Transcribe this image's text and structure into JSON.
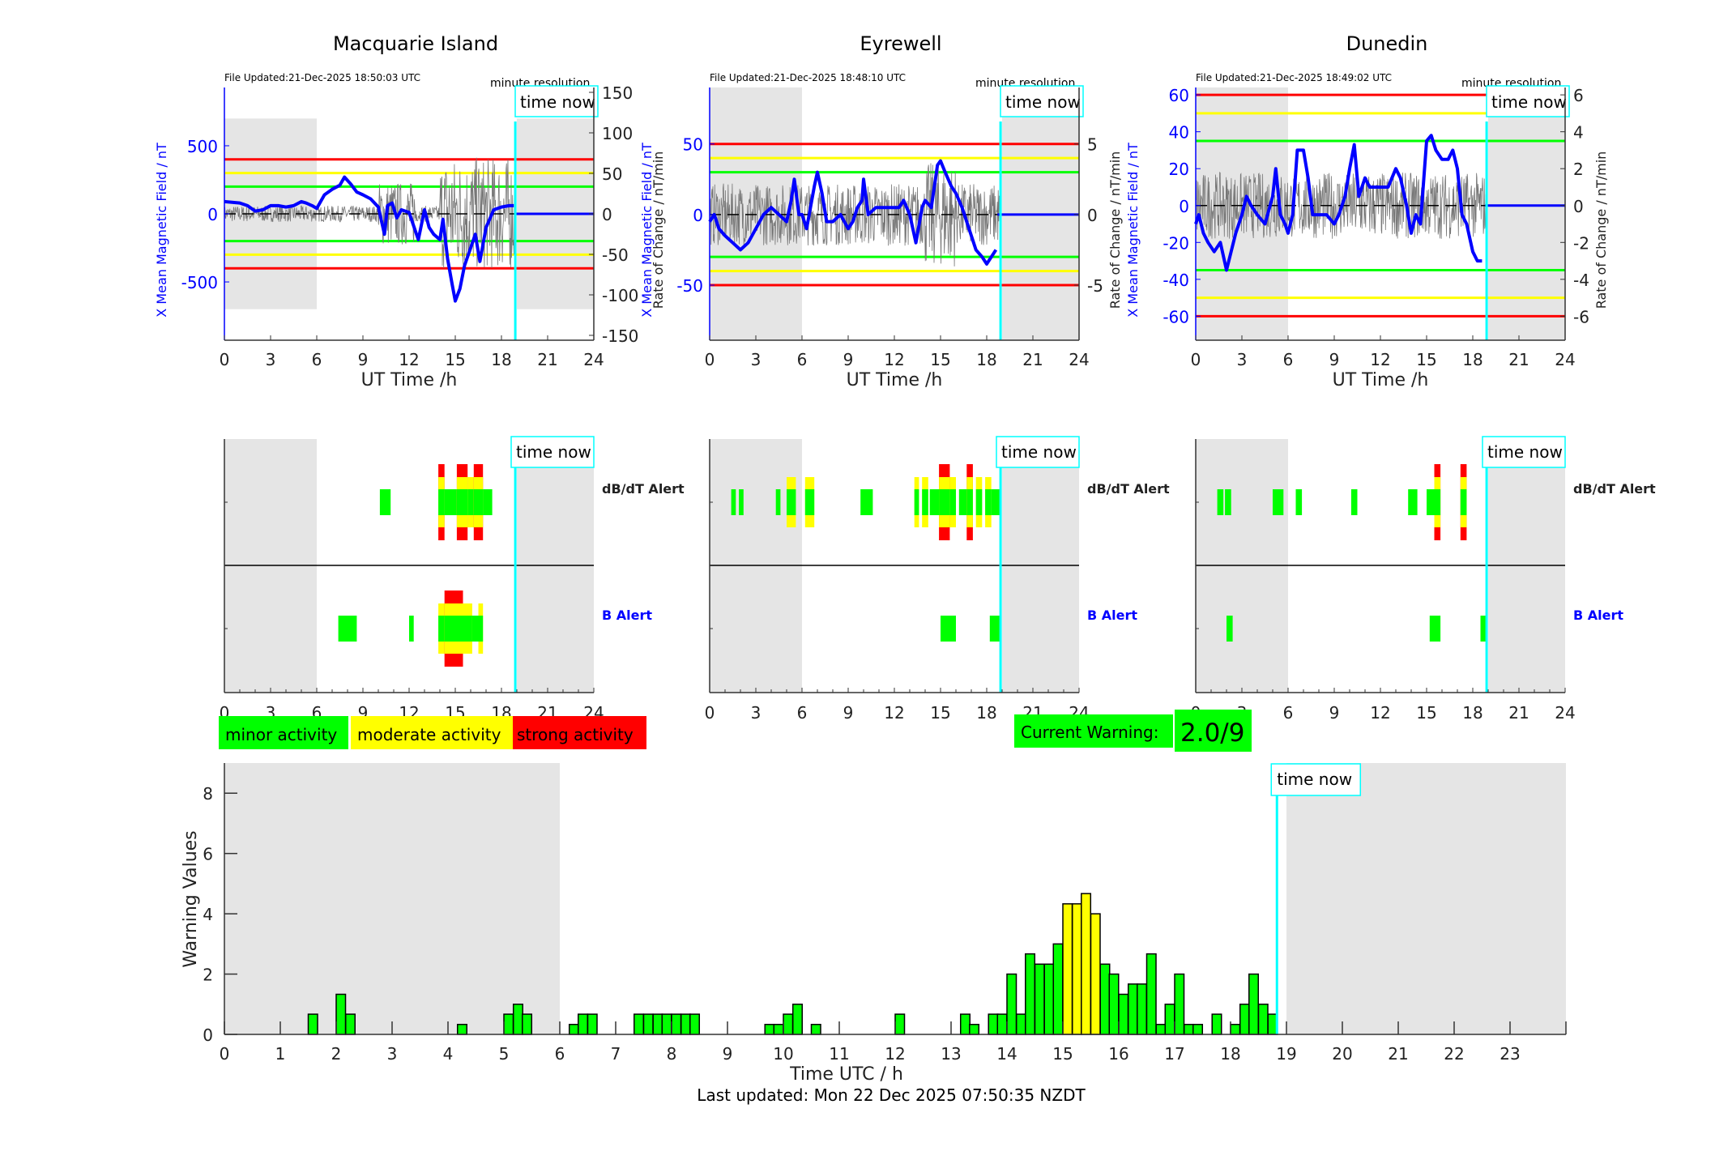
{
  "stations": [
    {
      "name": "Macquarie Island",
      "file_updated": "File Updated:21-Dec-2025 18:50:03 UTC",
      "resolution_label": "minute resolution",
      "left_ylabel": "X Mean Magnetic Field / nT",
      "right_ylabel": "Rate of Change / nT/min",
      "xlabel": "UT Time /h",
      "left_ylim": [
        -928,
        928
      ],
      "left_ticks": [
        500,
        0,
        -500
      ],
      "right_ylim": [
        -156,
        156
      ],
      "right_ticks": [
        150,
        100,
        50,
        0,
        -50,
        -100,
        -150
      ],
      "threshold_lines": [
        {
          "value": 400,
          "color": "#ff0000"
        },
        {
          "value": 300,
          "color": "#ffff00"
        },
        {
          "value": 200,
          "color": "#00ff00"
        },
        {
          "value": -200,
          "color": "#00ff00"
        },
        {
          "value": -300,
          "color": "#ffff00"
        },
        {
          "value": -400,
          "color": "#ff0000"
        }
      ],
      "field_series": [
        [
          0,
          90
        ],
        [
          0.5,
          85
        ],
        [
          1,
          80
        ],
        [
          1.5,
          60
        ],
        [
          2,
          20
        ],
        [
          2.5,
          30
        ],
        [
          3,
          60
        ],
        [
          3.5,
          60
        ],
        [
          4,
          50
        ],
        [
          4.5,
          60
        ],
        [
          5,
          90
        ],
        [
          5.3,
          80
        ],
        [
          5.7,
          60
        ],
        [
          6,
          40
        ],
        [
          6.5,
          140
        ],
        [
          7,
          180
        ],
        [
          7.5,
          210
        ],
        [
          7.8,
          270
        ],
        [
          8.2,
          220
        ],
        [
          8.6,
          160
        ],
        [
          9,
          140
        ],
        [
          9.5,
          110
        ],
        [
          10,
          50
        ],
        [
          10.4,
          -150
        ],
        [
          10.6,
          60
        ],
        [
          10.9,
          80
        ],
        [
          11.2,
          -30
        ],
        [
          11.5,
          30
        ],
        [
          12,
          10
        ],
        [
          12.3,
          -90
        ],
        [
          12.6,
          -190
        ],
        [
          13,
          30
        ],
        [
          13.3,
          -100
        ],
        [
          13.6,
          -150
        ],
        [
          14,
          -190
        ],
        [
          14.2,
          -40
        ],
        [
          14.5,
          -330
        ],
        [
          14.8,
          -520
        ],
        [
          15,
          -640
        ],
        [
          15.3,
          -550
        ],
        [
          15.6,
          -380
        ],
        [
          16,
          -250
        ],
        [
          16.3,
          -150
        ],
        [
          16.6,
          -350
        ],
        [
          17,
          -100
        ],
        [
          17.5,
          30
        ],
        [
          18,
          50
        ],
        [
          18.5,
          60
        ],
        [
          18.8,
          60
        ]
      ],
      "field_future": [
        [
          18.9,
          0
        ],
        [
          24,
          0
        ]
      ]
    },
    {
      "name": "Eyrewell",
      "file_updated": "File Updated:21-Dec-2025 18:48:10 UTC",
      "resolution_label": "minute resolution",
      "left_ylabel": "X Mean Magnetic Field / nT",
      "right_ylabel": "Rate of Change / nT/min",
      "xlabel": "UT Time /h",
      "left_ylim": [
        -89,
        90
      ],
      "left_ticks": [
        50,
        0,
        -50
      ],
      "right_ylim": [
        -8.9,
        9.0
      ],
      "right_ticks": [
        5,
        0,
        -5
      ],
      "threshold_lines": [
        {
          "value": 50,
          "color": "#ff0000"
        },
        {
          "value": 40,
          "color": "#ffff00"
        },
        {
          "value": 30,
          "color": "#00ff00"
        },
        {
          "value": -30,
          "color": "#00ff00"
        },
        {
          "value": -40,
          "color": "#ffff00"
        },
        {
          "value": -50,
          "color": "#ff0000"
        }
      ],
      "field_series": [
        [
          0,
          -5
        ],
        [
          0.3,
          0
        ],
        [
          0.6,
          -10
        ],
        [
          1,
          -15
        ],
        [
          1.5,
          -20
        ],
        [
          2,
          -25
        ],
        [
          2.5,
          -20
        ],
        [
          3,
          -10
        ],
        [
          3.5,
          0
        ],
        [
          4,
          5
        ],
        [
          4.5,
          0
        ],
        [
          5,
          -5
        ],
        [
          5.3,
          10
        ],
        [
          5.5,
          25
        ],
        [
          5.8,
          0
        ],
        [
          6,
          0
        ],
        [
          6.3,
          -10
        ],
        [
          6.8,
          20
        ],
        [
          7,
          30
        ],
        [
          7.3,
          15
        ],
        [
          7.6,
          -5
        ],
        [
          8,
          -5
        ],
        [
          8.5,
          0
        ],
        [
          9,
          -10
        ],
        [
          9.3,
          -5
        ],
        [
          9.6,
          5
        ],
        [
          9.9,
          10
        ],
        [
          10,
          25
        ],
        [
          10.3,
          0
        ],
        [
          10.8,
          5
        ],
        [
          11.3,
          5
        ],
        [
          11.8,
          5
        ],
        [
          12.3,
          5
        ],
        [
          12.6,
          10
        ],
        [
          13,
          0
        ],
        [
          13.4,
          -20
        ],
        [
          13.8,
          5
        ],
        [
          14,
          10
        ],
        [
          14.4,
          5
        ],
        [
          14.8,
          35
        ],
        [
          15,
          38
        ],
        [
          15.3,
          30
        ],
        [
          15.7,
          20
        ],
        [
          16,
          15
        ],
        [
          16.4,
          5
        ],
        [
          16.7,
          -5
        ],
        [
          17,
          -15
        ],
        [
          17.3,
          -25
        ],
        [
          17.7,
          -30
        ],
        [
          18,
          -35
        ],
        [
          18.3,
          -30
        ],
        [
          18.6,
          -25
        ]
      ],
      "field_future": [
        [
          18.7,
          0
        ],
        [
          24,
          0
        ]
      ]
    },
    {
      "name": "Dunedin",
      "file_updated": "File Updated:21-Dec-2025 18:49:02 UTC",
      "resolution_label": "minute resolution",
      "left_ylabel": "X Mean Magnetic Field / nT",
      "right_ylabel": "Rate of Change / nT/min",
      "xlabel": "UT Time /h",
      "left_ylim": [
        -73,
        64
      ],
      "left_ticks": [
        60,
        40,
        20,
        0,
        -20,
        -40,
        -60
      ],
      "right_ylim": [
        -7.3,
        6.4
      ],
      "right_ticks": [
        6,
        4,
        2,
        0,
        -2,
        -4,
        -6
      ],
      "threshold_lines": [
        {
          "value": 60,
          "color": "#ff0000"
        },
        {
          "value": 50,
          "color": "#ffff00"
        },
        {
          "value": 35,
          "color": "#00ff00"
        },
        {
          "value": -35,
          "color": "#00ff00"
        },
        {
          "value": -50,
          "color": "#ffff00"
        },
        {
          "value": -60,
          "color": "#ff0000"
        }
      ],
      "field_series": [
        [
          0,
          -10
        ],
        [
          0.2,
          -5
        ],
        [
          0.5,
          -15
        ],
        [
          0.8,
          -20
        ],
        [
          1.2,
          -25
        ],
        [
          1.6,
          -20
        ],
        [
          2,
          -35
        ],
        [
          2.3,
          -25
        ],
        [
          2.6,
          -15
        ],
        [
          3,
          -5
        ],
        [
          3.3,
          5
        ],
        [
          3.6,
          0
        ],
        [
          4,
          -5
        ],
        [
          4.5,
          -10
        ],
        [
          5,
          5
        ],
        [
          5.2,
          20
        ],
        [
          5.5,
          -5
        ],
        [
          5.8,
          -10
        ],
        [
          6,
          -15
        ],
        [
          6.3,
          -5
        ],
        [
          6.6,
          30
        ],
        [
          7,
          30
        ],
        [
          7.3,
          15
        ],
        [
          7.6,
          -5
        ],
        [
          8,
          -5
        ],
        [
          8.5,
          -5
        ],
        [
          9,
          -10
        ],
        [
          9.3,
          -5
        ],
        [
          9.7,
          5
        ],
        [
          10,
          20
        ],
        [
          10.3,
          33
        ],
        [
          10.6,
          5
        ],
        [
          11,
          15
        ],
        [
          11.3,
          10
        ],
        [
          11.6,
          10
        ],
        [
          12,
          10
        ],
        [
          12.5,
          10
        ],
        [
          13,
          20
        ],
        [
          13.3,
          15
        ],
        [
          13.7,
          0
        ],
        [
          14,
          -15
        ],
        [
          14.3,
          -5
        ],
        [
          14.6,
          -10
        ],
        [
          15,
          35
        ],
        [
          15.3,
          38
        ],
        [
          15.6,
          30
        ],
        [
          16,
          25
        ],
        [
          16.4,
          25
        ],
        [
          16.7,
          30
        ],
        [
          17,
          20
        ],
        [
          17.3,
          -5
        ],
        [
          17.6,
          -10
        ],
        [
          18,
          -25
        ],
        [
          18.3,
          -30
        ],
        [
          18.6,
          -30
        ]
      ],
      "field_future": [
        [
          18.8,
          0
        ],
        [
          24,
          0
        ]
      ]
    }
  ],
  "top_xticks": [
    0,
    3,
    6,
    9,
    12,
    15,
    18,
    21,
    24
  ],
  "night_shading": [
    [
      0,
      6
    ],
    [
      19,
      24
    ]
  ],
  "time_now_hours": 18.9,
  "time_now_label": "time now",
  "alerts": {
    "dbdt_label": "dB/dT Alert",
    "b_label": "B Alert",
    "panels": [
      {
        "station": "Macquarie Island",
        "dbdt": [
          {
            "start": 10.1,
            "end": 10.8,
            "level": 1
          },
          {
            "start": 13.9,
            "end": 14.3,
            "level": 3
          },
          {
            "start": 14.3,
            "end": 15.1,
            "level": 1
          },
          {
            "start": 15.1,
            "end": 15.8,
            "level": 3
          },
          {
            "start": 15.8,
            "end": 16.2,
            "level": 2
          },
          {
            "start": 16.2,
            "end": 16.8,
            "level": 3
          },
          {
            "start": 16.8,
            "end": 17.4,
            "level": 1
          }
        ],
        "b": [
          {
            "start": 7.4,
            "end": 8.6,
            "level": 1
          },
          {
            "start": 12.0,
            "end": 12.3,
            "level": 1
          },
          {
            "start": 13.9,
            "end": 14.3,
            "level": 2
          },
          {
            "start": 14.3,
            "end": 15.5,
            "level": 3
          },
          {
            "start": 15.5,
            "end": 16.1,
            "level": 2
          },
          {
            "start": 16.1,
            "end": 16.5,
            "level": 1
          },
          {
            "start": 16.5,
            "end": 16.8,
            "level": 2
          }
        ]
      },
      {
        "station": "Eyrewell",
        "dbdt": [
          {
            "start": 1.4,
            "end": 1.7,
            "level": 1
          },
          {
            "start": 1.9,
            "end": 2.2,
            "level": 1
          },
          {
            "start": 4.3,
            "end": 4.6,
            "level": 1
          },
          {
            "start": 5.0,
            "end": 5.6,
            "level": 2
          },
          {
            "start": 6.2,
            "end": 6.8,
            "level": 2
          },
          {
            "start": 9.8,
            "end": 10.6,
            "level": 1
          },
          {
            "start": 13.3,
            "end": 13.6,
            "level": 2
          },
          {
            "start": 13.8,
            "end": 14.2,
            "level": 2
          },
          {
            "start": 14.3,
            "end": 14.9,
            "level": 1
          },
          {
            "start": 14.9,
            "end": 15.6,
            "level": 3
          },
          {
            "start": 15.6,
            "end": 16.0,
            "level": 2
          },
          {
            "start": 16.2,
            "end": 16.7,
            "level": 1
          },
          {
            "start": 16.7,
            "end": 17.1,
            "level": 3
          },
          {
            "start": 17.3,
            "end": 17.7,
            "level": 2
          },
          {
            "start": 17.9,
            "end": 18.3,
            "level": 2
          },
          {
            "start": 18.3,
            "end": 18.9,
            "level": 1
          }
        ],
        "b": [
          {
            "start": 15.0,
            "end": 16.0,
            "level": 1
          },
          {
            "start": 18.2,
            "end": 18.9,
            "level": 1
          }
        ]
      },
      {
        "station": "Dunedin",
        "dbdt": [
          {
            "start": 1.4,
            "end": 1.8,
            "level": 1
          },
          {
            "start": 1.9,
            "end": 2.3,
            "level": 1
          },
          {
            "start": 5.0,
            "end": 5.7,
            "level": 1
          },
          {
            "start": 6.5,
            "end": 6.9,
            "level": 1
          },
          {
            "start": 10.1,
            "end": 10.5,
            "level": 1
          },
          {
            "start": 13.8,
            "end": 14.4,
            "level": 1
          },
          {
            "start": 15.0,
            "end": 15.5,
            "level": 1
          },
          {
            "start": 15.5,
            "end": 15.9,
            "level": 3
          },
          {
            "start": 17.2,
            "end": 17.6,
            "level": 3
          }
        ],
        "b": [
          {
            "start": 2.0,
            "end": 2.4,
            "level": 1
          },
          {
            "start": 15.2,
            "end": 15.9,
            "level": 1
          },
          {
            "start": 18.5,
            "end": 18.9,
            "level": 1
          }
        ]
      }
    ]
  },
  "legend": {
    "minor": {
      "label": "minor activity",
      "color": "#00ff00"
    },
    "moderate": {
      "label": "moderate activity",
      "color": "#ffff00"
    },
    "strong": {
      "label": "strong activity",
      "color": "#ff0000"
    }
  },
  "current_warning": {
    "label": "Current Warning:",
    "value": "2.0/9",
    "color": "#00ff00"
  },
  "chart_data": {
    "type": "bar",
    "title": "",
    "xlabel": "Time UTC / h",
    "ylabel": "Warning Values",
    "xlim": [
      0,
      24
    ],
    "ylim": [
      0,
      9
    ],
    "xticks": [
      0,
      1,
      2,
      3,
      4,
      5,
      6,
      7,
      8,
      9,
      10,
      11,
      12,
      13,
      14,
      15,
      16,
      17,
      18,
      19,
      20,
      21,
      22,
      23
    ],
    "yticks": [
      0,
      2,
      4,
      6,
      8
    ],
    "bin_width_hours": 0.1667,
    "moderate_threshold": 3.5,
    "bars": [
      [
        1.5,
        0.67
      ],
      [
        2.0,
        1.33
      ],
      [
        2.17,
        0.67
      ],
      [
        4.17,
        0.33
      ],
      [
        5.0,
        0.67
      ],
      [
        5.17,
        1.0
      ],
      [
        5.33,
        0.67
      ],
      [
        6.17,
        0.33
      ],
      [
        6.33,
        0.67
      ],
      [
        6.5,
        0.67
      ],
      [
        7.33,
        0.67
      ],
      [
        7.5,
        0.67
      ],
      [
        7.67,
        0.67
      ],
      [
        7.83,
        0.67
      ],
      [
        8.0,
        0.67
      ],
      [
        8.17,
        0.67
      ],
      [
        8.33,
        0.67
      ],
      [
        9.67,
        0.33
      ],
      [
        9.83,
        0.33
      ],
      [
        10.0,
        0.67
      ],
      [
        10.17,
        1.0
      ],
      [
        10.5,
        0.33
      ],
      [
        12.0,
        0.67
      ],
      [
        13.17,
        0.67
      ],
      [
        13.33,
        0.33
      ],
      [
        13.67,
        0.67
      ],
      [
        13.83,
        0.67
      ],
      [
        14.0,
        2.0
      ],
      [
        14.17,
        0.67
      ],
      [
        14.33,
        2.67
      ],
      [
        14.5,
        2.33
      ],
      [
        14.67,
        2.33
      ],
      [
        14.83,
        3.0
      ],
      [
        15.0,
        4.33
      ],
      [
        15.17,
        4.33
      ],
      [
        15.33,
        4.67
      ],
      [
        15.5,
        4.0
      ],
      [
        15.67,
        2.33
      ],
      [
        15.83,
        2.0
      ],
      [
        16.0,
        1.33
      ],
      [
        16.17,
        1.67
      ],
      [
        16.33,
        1.67
      ],
      [
        16.5,
        2.67
      ],
      [
        16.67,
        0.33
      ],
      [
        16.83,
        1.0
      ],
      [
        17.0,
        2.0
      ],
      [
        17.17,
        0.33
      ],
      [
        17.33,
        0.33
      ],
      [
        17.67,
        0.67
      ],
      [
        18.0,
        0.33
      ],
      [
        18.17,
        1.0
      ],
      [
        18.33,
        2.0
      ],
      [
        18.5,
        1.0
      ],
      [
        18.67,
        0.67
      ]
    ],
    "shaded_regions": [
      [
        0,
        6
      ],
      [
        19,
        24
      ]
    ],
    "time_now_hours": 18.83
  },
  "footer": {
    "last_updated": "Last updated: Mon 22 Dec 2025 07:50:35 NZDT"
  }
}
